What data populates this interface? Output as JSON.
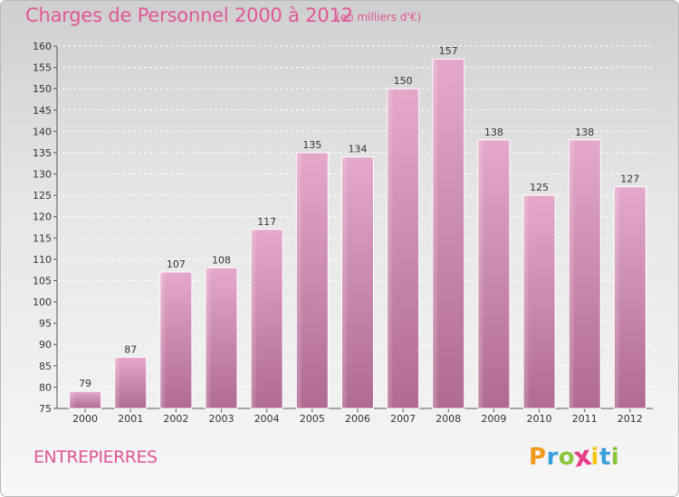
{
  "header": {
    "title": "Charges de Personnel 2000 à 2012",
    "subtitle": "(en milliers d'€)"
  },
  "footer": {
    "commune": "ENTREPIERRES",
    "logo_text": "Proxiti",
    "logo_letters": [
      {
        "char": "P",
        "color": "#f29a1e"
      },
      {
        "char": "r",
        "color": "#3aa0dc"
      },
      {
        "char": "o",
        "color": "#8cc63f"
      },
      {
        "char": "x",
        "color": "#e83e8c"
      },
      {
        "char": "i",
        "color": "#f5c518"
      },
      {
        "char": "t",
        "color": "#3aa0dc"
      },
      {
        "char": "i",
        "color": "#8cc63f"
      }
    ]
  },
  "colors": {
    "accent": "#e0569a",
    "bar_top": "#e5a8cc",
    "bar_bottom": "#b06a93"
  },
  "chart_data": {
    "type": "bar",
    "categories": [
      "2000",
      "2001",
      "2002",
      "2003",
      "2004",
      "2005",
      "2006",
      "2007",
      "2008",
      "2009",
      "2010",
      "2011",
      "2012"
    ],
    "values": [
      79,
      87,
      107,
      108,
      117,
      135,
      134,
      150,
      157,
      138,
      125,
      138,
      127
    ],
    "ylim": [
      75,
      160
    ],
    "yticks": [
      75,
      80,
      85,
      90,
      95,
      100,
      105,
      110,
      115,
      120,
      125,
      130,
      135,
      140,
      145,
      150,
      155,
      160
    ],
    "grid": true,
    "legend": "none"
  }
}
